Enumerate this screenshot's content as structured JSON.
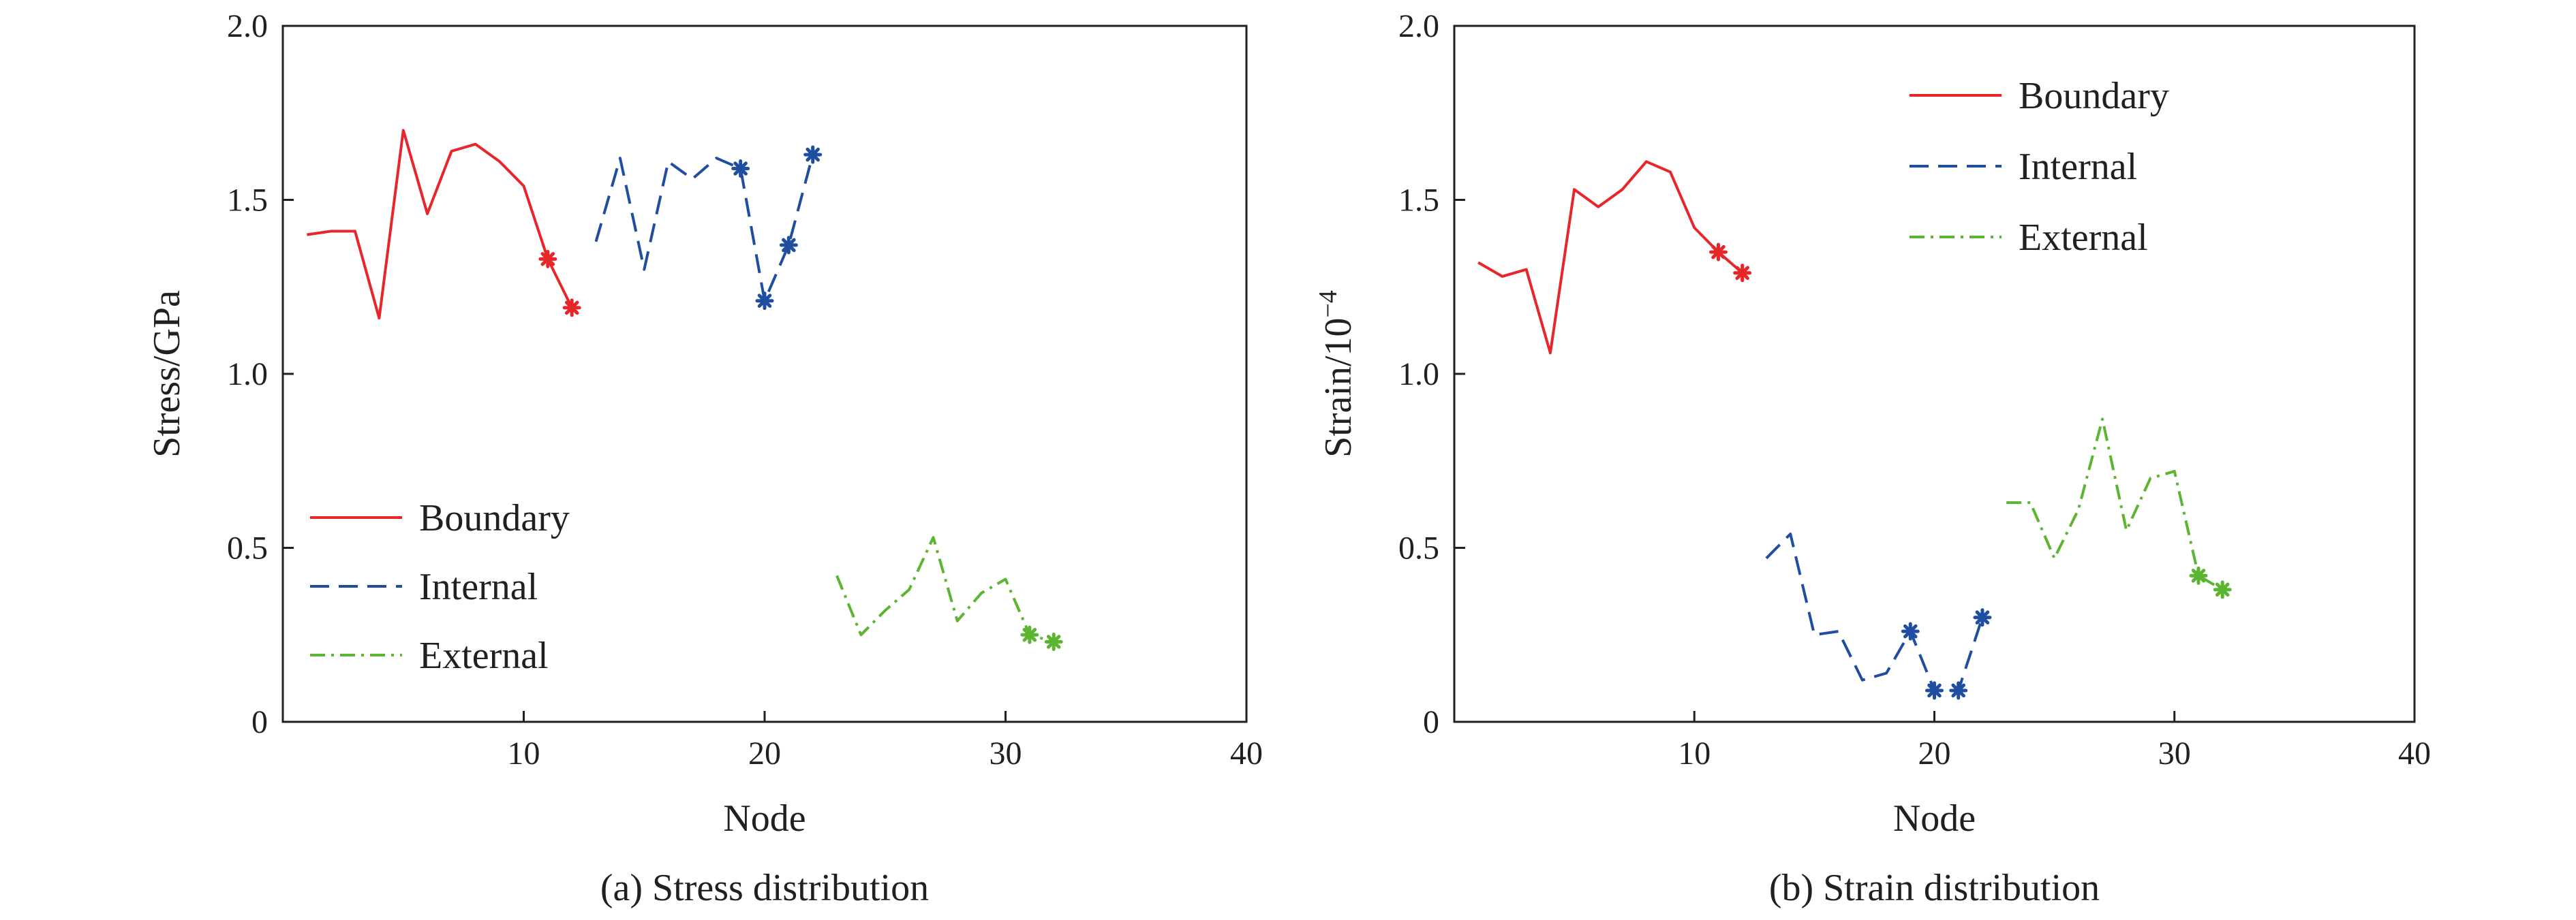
{
  "figure": {
    "captions": [
      "(a) Stress distribution",
      "(b) Strain distribution"
    ]
  },
  "colors": {
    "boundary": "#e8262a",
    "internal": "#1f4ea1",
    "external": "#5cb531",
    "axis": "#231f20"
  },
  "chart_data": [
    {
      "type": "line",
      "caption": "(a) Stress distribution",
      "xlabel": "Node",
      "ylabel": "Stress/GPa",
      "xlim": [
        0,
        40
      ],
      "ylim": [
        0,
        2.0
      ],
      "xticks": [
        10,
        20,
        30,
        40
      ],
      "xtick_labels": [
        "10",
        "20",
        "30",
        "40"
      ],
      "yticks": [
        0,
        0.5,
        1.0,
        1.5,
        2.0
      ],
      "ytick_labels": [
        "0",
        "0.5",
        "1.0",
        "1.5",
        "2.0"
      ],
      "grid": false,
      "legend_position": "bottom-left",
      "series": [
        {
          "name": "Boundary",
          "style": "solid",
          "color": "#e8262a",
          "x": [
            1,
            2,
            3,
            4,
            5,
            6,
            7,
            8,
            9,
            10,
            11,
            12
          ],
          "y": [
            1.4,
            1.41,
            1.41,
            1.16,
            1.7,
            1.46,
            1.64,
            1.66,
            1.61,
            1.54,
            1.33,
            1.19
          ],
          "markers_x": [
            11,
            12
          ],
          "markers_y": [
            1.33,
            1.19
          ]
        },
        {
          "name": "Internal",
          "style": "dashed",
          "color": "#1f4ea1",
          "x": [
            13,
            14,
            15,
            16,
            17,
            18,
            19,
            20,
            21,
            22
          ],
          "y": [
            1.38,
            1.62,
            1.3,
            1.61,
            1.56,
            1.62,
            1.59,
            1.21,
            1.37,
            1.63
          ],
          "markers_x": [
            19,
            20,
            21,
            22
          ],
          "markers_y": [
            1.59,
            1.21,
            1.37,
            1.63
          ]
        },
        {
          "name": "External",
          "style": "dashdot",
          "color": "#5cb531",
          "x": [
            23,
            24,
            25,
            26,
            27,
            28,
            29,
            30,
            31,
            32
          ],
          "y": [
            0.42,
            0.25,
            0.32,
            0.38,
            0.53,
            0.29,
            0.37,
            0.41,
            0.25,
            0.23
          ],
          "markers_x": [
            31,
            32
          ],
          "markers_y": [
            0.25,
            0.23
          ]
        }
      ]
    },
    {
      "type": "line",
      "caption": "(b) Strain distribution",
      "xlabel": "Node",
      "ylabel": "Strain/10",
      "ylabel_superscript": "−4",
      "xlim": [
        0,
        40
      ],
      "ylim": [
        0,
        2.0
      ],
      "xticks": [
        10,
        20,
        30,
        40
      ],
      "xtick_labels": [
        "10",
        "20",
        "30",
        "40"
      ],
      "yticks": [
        0,
        0.5,
        1.0,
        1.5,
        2.0
      ],
      "ytick_labels": [
        "0",
        "0.5",
        "1.0",
        "1.5",
        "2.0"
      ],
      "grid": false,
      "legend_position": "top-right",
      "series": [
        {
          "name": "Boundary",
          "style": "solid",
          "color": "#e8262a",
          "x": [
            1,
            2,
            3,
            4,
            5,
            6,
            7,
            8,
            9,
            10,
            11,
            12
          ],
          "y": [
            1.32,
            1.28,
            1.3,
            1.06,
            1.53,
            1.48,
            1.53,
            1.61,
            1.58,
            1.42,
            1.35,
            1.29
          ],
          "markers_x": [
            11,
            12
          ],
          "markers_y": [
            1.35,
            1.29
          ]
        },
        {
          "name": "Internal",
          "style": "dashed",
          "color": "#1f4ea1",
          "x": [
            13,
            14,
            15,
            16,
            17,
            18,
            19,
            20,
            21,
            22
          ],
          "y": [
            0.47,
            0.54,
            0.25,
            0.26,
            0.12,
            0.14,
            0.26,
            0.09,
            0.09,
            0.3
          ],
          "markers_x": [
            19,
            20,
            21,
            22
          ],
          "markers_y": [
            0.26,
            0.09,
            0.09,
            0.3
          ]
        },
        {
          "name": "External",
          "style": "dashdot",
          "color": "#5cb531",
          "x": [
            23,
            24,
            25,
            26,
            27,
            28,
            29,
            30,
            31,
            32
          ],
          "y": [
            0.63,
            0.63,
            0.47,
            0.61,
            0.87,
            0.55,
            0.7,
            0.72,
            0.42,
            0.38
          ],
          "markers_x": [
            31,
            32
          ],
          "markers_y": [
            0.42,
            0.38
          ]
        }
      ]
    }
  ]
}
